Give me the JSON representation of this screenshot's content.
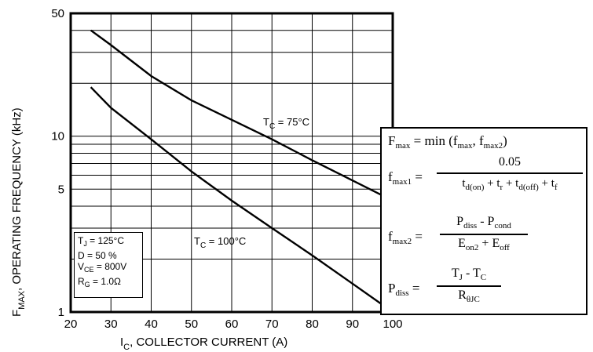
{
  "chart_data": {
    "type": "line",
    "xlabel": "I",
    "xlabel_sub": "C",
    "xlabel_rest": ", COLLECTOR CURRENT (A)",
    "ylabel": "F",
    "ylabel_sub": "MAX",
    "ylabel_rest": ", OPERATING FREQUENCY (kHz)",
    "xlim": [
      20,
      100
    ],
    "ylim": [
      1,
      50
    ],
    "y_scale": "log",
    "grid": true,
    "x_ticks": [
      "20",
      "30",
      "40",
      "50",
      "60",
      "70",
      "80",
      "90",
      "100"
    ],
    "y_ticks": [
      {
        "value": 1,
        "label": "1"
      },
      {
        "value": 5,
        "label": "5"
      },
      {
        "value": 10,
        "label": "10"
      },
      {
        "value": 50,
        "label": "50"
      }
    ],
    "series": [
      {
        "name": "T_C = 75°C",
        "label_main": "T",
        "label_sub": "C",
        "label_rest": " = 75°C",
        "points": [
          [
            25,
            40
          ],
          [
            30,
            33
          ],
          [
            40,
            22
          ],
          [
            50,
            16
          ],
          [
            60,
            12.4
          ],
          [
            70,
            9.6
          ],
          [
            80,
            7.3
          ],
          [
            90,
            5.6
          ],
          [
            100,
            4.3
          ]
        ]
      },
      {
        "name": "T_C = 100°C",
        "label_main": "T",
        "label_sub": "C",
        "label_rest": " = 100°C",
        "points": [
          [
            25,
            19
          ],
          [
            30,
            14.5
          ],
          [
            40,
            9.6
          ],
          [
            50,
            6.3
          ],
          [
            60,
            4.3
          ],
          [
            70,
            3.0
          ],
          [
            80,
            2.1
          ],
          [
            90,
            1.45
          ],
          [
            100,
            1.0
          ]
        ]
      }
    ]
  },
  "conditions": {
    "tj": {
      "main": "T",
      "sub": "J",
      "rest": " = 125°C"
    },
    "duty": {
      "text": "D = 50 %"
    },
    "vce": {
      "main": "V",
      "sub": "CE",
      "rest": " =  800V"
    },
    "rg": {
      "main": "R",
      "sub": "G",
      "rest": " = 1.0Ω"
    }
  },
  "formulas": {
    "fmax": {
      "lhs": "F",
      "lhs_sub": "max",
      "mid": " = min (f",
      "mid_sub1": "max",
      "mid2": ", f",
      "mid_sub2": "max2",
      "end": ")"
    },
    "fmax1": {
      "lhs": "f",
      "lhs_sub": "max1",
      "eq": " =",
      "numerator": "0.05",
      "den_a": "t",
      "den_a_sub": "d(on)",
      "den_b": " + t",
      "den_b_sub": "r",
      "den_c": " + t",
      "den_c_sub": "d(off)",
      "den_d": " + t",
      "den_d_sub": "f"
    },
    "fmax2": {
      "lhs": "f",
      "lhs_sub": "max2",
      "eq": " =",
      "num_a": "P",
      "num_a_sub": "diss",
      "num_b": " - P",
      "num_b_sub": "cond",
      "den_a": "E",
      "den_a_sub": "on2",
      "den_b": " + E",
      "den_b_sub": "off"
    },
    "pdiss": {
      "lhs": "P",
      "lhs_sub": "diss",
      "eq": " =",
      "num_a": "T",
      "num_a_sub": "J",
      "num_b": " - T",
      "num_b_sub": "C",
      "den_a": "R",
      "den_a_sub": "θJC"
    }
  }
}
